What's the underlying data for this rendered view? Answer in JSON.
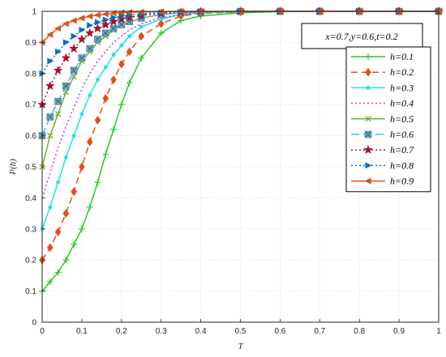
{
  "chart_data": {
    "type": "line",
    "xlabel": "T",
    "ylabel": "P(h)",
    "xlim": [
      0,
      1
    ],
    "ylim": [
      0,
      1
    ],
    "x_ticks": [
      "0",
      "0.1",
      "0.2",
      "0.3",
      "0.4",
      "0.5",
      "0.6",
      "0.7",
      "0.8",
      "0.9",
      "1"
    ],
    "y_ticks": [
      "0",
      "0.1",
      "0.2",
      "0.3",
      "0.4",
      "0.5",
      "0.6",
      "0.7",
      "0.8",
      "0.9",
      "1"
    ],
    "grid": true,
    "legend_position": "right",
    "annotation": "x=0.7,y=0.6,t=0.2",
    "x": [
      0,
      0.02,
      0.04,
      0.06,
      0.08,
      0.1,
      0.12,
      0.14,
      0.16,
      0.18,
      0.2,
      0.22,
      0.25,
      0.3,
      0.35,
      0.4,
      0.5,
      0.6,
      0.7,
      0.8,
      0.9,
      1.0
    ],
    "series": [
      {
        "name": "h=0.1",
        "color": "#22cc22",
        "dash": "",
        "marker": "plus",
        "values": [
          0.1,
          0.13,
          0.16,
          0.2,
          0.25,
          0.3,
          0.37,
          0.45,
          0.54,
          0.62,
          0.7,
          0.77,
          0.85,
          0.93,
          0.97,
          0.985,
          0.995,
          0.999,
          1.0,
          1.0,
          1.0,
          1.0
        ]
      },
      {
        "name": "h=0.2",
        "color": "#e05018",
        "dash": "8,5",
        "marker": "diamond",
        "values": [
          0.2,
          0.24,
          0.29,
          0.35,
          0.42,
          0.5,
          0.58,
          0.65,
          0.72,
          0.78,
          0.83,
          0.87,
          0.92,
          0.96,
          0.985,
          0.993,
          0.998,
          1.0,
          1.0,
          1.0,
          1.0,
          1.0
        ]
      },
      {
        "name": "h=0.3",
        "color": "#20e0e8",
        "dash": "",
        "marker": "dot",
        "values": [
          0.3,
          0.37,
          0.45,
          0.53,
          0.6,
          0.67,
          0.73,
          0.78,
          0.82,
          0.86,
          0.89,
          0.92,
          0.95,
          0.975,
          0.99,
          0.995,
          0.999,
          1.0,
          1.0,
          1.0,
          1.0,
          1.0
        ]
      },
      {
        "name": "h=0.4",
        "color": "#ee22ee",
        "dash": "2,3",
        "marker": "none",
        "values": [
          0.4,
          0.48,
          0.56,
          0.63,
          0.69,
          0.75,
          0.8,
          0.84,
          0.87,
          0.9,
          0.92,
          0.94,
          0.96,
          0.98,
          0.99,
          0.996,
          0.999,
          1.0,
          1.0,
          1.0,
          1.0,
          1.0
        ]
      },
      {
        "name": "h=0.5",
        "color": "#77ac30",
        "dash": "",
        "marker": "x",
        "values": [
          0.5,
          0.6,
          0.67,
          0.74,
          0.79,
          0.84,
          0.87,
          0.9,
          0.92,
          0.94,
          0.955,
          0.965,
          0.978,
          0.99,
          0.995,
          0.998,
          1.0,
          1.0,
          1.0,
          1.0,
          1.0,
          1.0
        ]
      },
      {
        "name": "h=0.6",
        "color": "#4db8f0",
        "dash": "10,5",
        "marker": "square-x",
        "values": [
          0.6,
          0.66,
          0.71,
          0.76,
          0.81,
          0.85,
          0.88,
          0.91,
          0.93,
          0.945,
          0.957,
          0.967,
          0.978,
          0.99,
          0.995,
          0.998,
          1.0,
          1.0,
          1.0,
          1.0,
          1.0,
          1.0
        ]
      },
      {
        "name": "h=0.7",
        "color": "#a2142f",
        "dash": "2,3",
        "marker": "star",
        "values": [
          0.7,
          0.76,
          0.81,
          0.85,
          0.88,
          0.91,
          0.93,
          0.945,
          0.957,
          0.967,
          0.975,
          0.98,
          0.987,
          0.993,
          0.997,
          0.999,
          1.0,
          1.0,
          1.0,
          1.0,
          1.0,
          1.0
        ]
      },
      {
        "name": "h=0.8",
        "color": "#0072bd",
        "dash": "2,3",
        "marker": "triangle-right",
        "values": [
          0.8,
          0.84,
          0.87,
          0.9,
          0.92,
          0.94,
          0.955,
          0.965,
          0.973,
          0.98,
          0.985,
          0.988,
          0.992,
          0.996,
          0.998,
          0.999,
          1.0,
          1.0,
          1.0,
          1.0,
          1.0,
          1.0
        ]
      },
      {
        "name": "h=0.9",
        "color": "#d95319",
        "dash": "",
        "marker": "triangle-left",
        "values": [
          0.9,
          0.925,
          0.945,
          0.96,
          0.97,
          0.978,
          0.984,
          0.988,
          0.991,
          0.994,
          0.996,
          0.997,
          0.998,
          0.999,
          1.0,
          1.0,
          1.0,
          1.0,
          1.0,
          1.0,
          1.0,
          1.0
        ]
      }
    ]
  }
}
